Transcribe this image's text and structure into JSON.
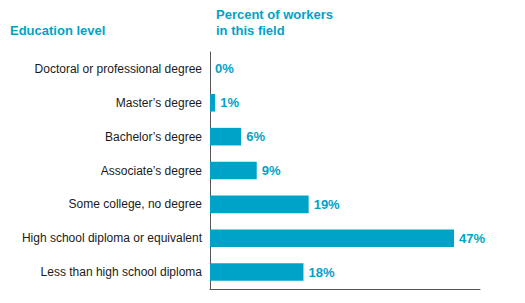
{
  "chart_data": {
    "type": "bar",
    "orientation": "horizontal",
    "y_label": "Education level",
    "x_label": "Percent of workers\nin this field",
    "categories": [
      "Doctoral or professional degree",
      "Master’s degree",
      "Bachelor’s degree",
      "Associate’s degree",
      "Some college, no degree",
      "High school diploma or equivalent",
      "Less than high school diploma"
    ],
    "values": [
      0,
      1,
      6,
      9,
      19,
      47,
      18
    ],
    "value_labels": [
      "0%",
      "1%",
      "6%",
      "9%",
      "19%",
      "47%",
      "18%"
    ],
    "data_labels": true,
    "color": "#00a3c8",
    "xlim": [
      0,
      52
    ],
    "grid": false,
    "tick_labels": "y"
  }
}
